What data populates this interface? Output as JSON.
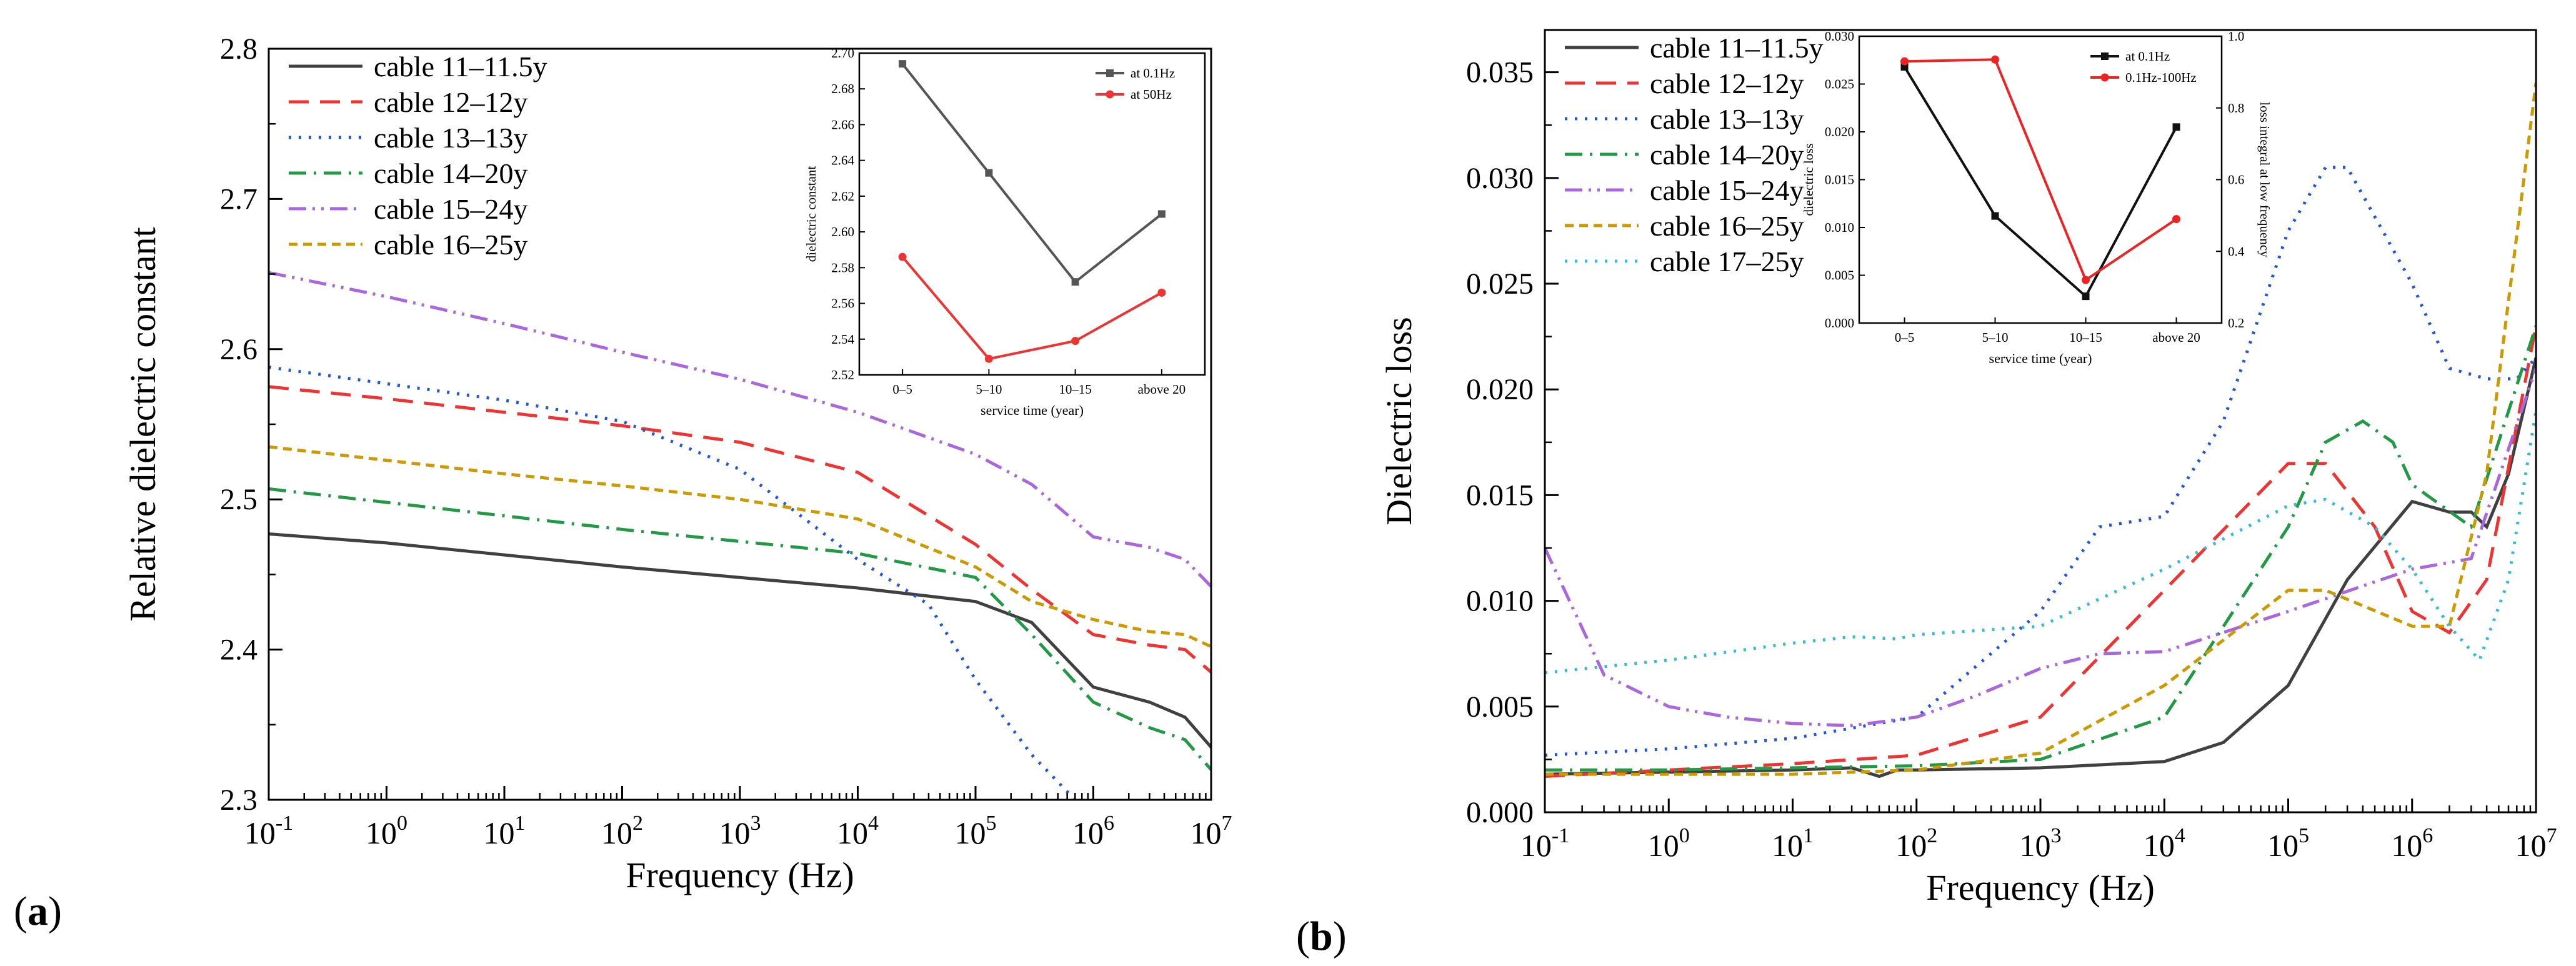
{
  "panels": {
    "a": {
      "label": "(a)",
      "label_letter": "a"
    },
    "b": {
      "label": "(b)",
      "label_letter": "b"
    }
  },
  "chart_data": [
    {
      "id": "a-main",
      "type": "line",
      "title": "",
      "xlabel": "Frequency (Hz)",
      "ylabel": "Relative dielectric constant",
      "xscale": "log",
      "xlim": [
        0.1,
        10000000
      ],
      "ylim": [
        2.3,
        2.8
      ],
      "xticks": [
        0.1,
        1,
        10,
        100,
        1000,
        10000,
        100000,
        1000000,
        10000000
      ],
      "xtick_base": "10",
      "xtick_exps": [
        "-1",
        "0",
        "1",
        "2",
        "3",
        "4",
        "5",
        "6",
        "7"
      ],
      "yticks": [
        "2.3",
        "2.4",
        "2.5",
        "2.6",
        "2.7",
        "2.8"
      ],
      "legend_position": "top-left",
      "series": [
        {
          "name": "cable 11–11.5y",
          "color": "#404040",
          "style": "solid",
          "x": [
            0.1,
            1,
            10,
            100,
            1000,
            10000,
            100000,
            300000,
            1000000,
            3000000,
            6000000,
            10000000
          ],
          "y": [
            2.477,
            2.471,
            2.463,
            2.455,
            2.448,
            2.441,
            2.432,
            2.418,
            2.375,
            2.365,
            2.355,
            2.335
          ]
        },
        {
          "name": "cable 12–12y",
          "color": "#ee3333",
          "style": "dashed",
          "x": [
            0.1,
            1,
            10,
            100,
            1000,
            10000,
            100000,
            300000,
            1000000,
            3000000,
            6000000,
            10000000
          ],
          "y": [
            2.575,
            2.567,
            2.558,
            2.549,
            2.538,
            2.518,
            2.47,
            2.44,
            2.41,
            2.403,
            2.4,
            2.385
          ]
        },
        {
          "name": "cable 13–13y",
          "color": "#2255dd",
          "style": "dotted",
          "x": [
            0.1,
            1,
            10,
            100,
            1000,
            10000,
            40000,
            100000,
            300000,
            700000
          ],
          "y": [
            2.588,
            2.577,
            2.566,
            2.552,
            2.52,
            2.46,
            2.43,
            2.38,
            2.33,
            2.3
          ]
        },
        {
          "name": "cable 14–20y",
          "color": "#229944",
          "style": "dashdot",
          "x": [
            0.1,
            1,
            10,
            100,
            1000,
            10000,
            100000,
            300000,
            1000000,
            3000000,
            6000000,
            10000000
          ],
          "y": [
            2.507,
            2.498,
            2.489,
            2.48,
            2.472,
            2.464,
            2.448,
            2.41,
            2.365,
            2.348,
            2.34,
            2.32
          ]
        },
        {
          "name": "cable 15–24y",
          "color": "#aa66dd",
          "style": "dashdotdot",
          "x": [
            0.1,
            1,
            10,
            100,
            1000,
            10000,
            100000,
            300000,
            1000000,
            3000000,
            6000000,
            10000000
          ],
          "y": [
            2.651,
            2.635,
            2.617,
            2.598,
            2.58,
            2.558,
            2.53,
            2.51,
            2.475,
            2.468,
            2.46,
            2.442
          ]
        },
        {
          "name": "cable 16–25y",
          "color": "#cc9900",
          "style": "shortdash",
          "x": [
            0.1,
            1,
            10,
            100,
            1000,
            10000,
            100000,
            300000,
            1000000,
            3000000,
            6000000,
            10000000
          ],
          "y": [
            2.535,
            2.526,
            2.517,
            2.509,
            2.5,
            2.487,
            2.455,
            2.432,
            2.42,
            2.412,
            2.41,
            2.402
          ]
        }
      ]
    },
    {
      "id": "a-inset",
      "type": "line",
      "title": "",
      "xlabel": "service time (year)",
      "ylabel": "dielectric constant",
      "categories": [
        "0–5",
        "5–10",
        "10–15",
        "above 20"
      ],
      "ylim": [
        2.52,
        2.7
      ],
      "yticks": [
        "2.52",
        "2.54",
        "2.56",
        "2.58",
        "2.60",
        "2.62",
        "2.64",
        "2.66",
        "2.68",
        "2.70"
      ],
      "legend_position": "top-right",
      "series": [
        {
          "name": "at 0.1Hz",
          "color": "#555555",
          "marker": "square",
          "values": [
            2.694,
            2.633,
            2.572,
            2.61
          ]
        },
        {
          "name": "at 50Hz",
          "color": "#ee3333",
          "marker": "circle",
          "values": [
            2.586,
            2.529,
            2.539,
            2.566
          ]
        }
      ]
    },
    {
      "id": "b-main",
      "type": "line",
      "title": "",
      "xlabel": "Frequency (Hz)",
      "ylabel": "Dielectric loss",
      "xscale": "log",
      "xlim": [
        0.1,
        10000000
      ],
      "ylim": [
        0,
        0.037
      ],
      "xticks": [
        0.1,
        1,
        10,
        100,
        1000,
        10000,
        100000,
        1000000,
        10000000
      ],
      "xtick_base": "10",
      "xtick_exps": [
        "-1",
        "0",
        "1",
        "2",
        "3",
        "4",
        "5",
        "6",
        "7"
      ],
      "yticks": [
        "0.000",
        "0.005",
        "0.010",
        "0.015",
        "0.020",
        "0.025",
        "0.030",
        "0.035"
      ],
      "legend_position": "top-left",
      "series": [
        {
          "name": "cable 11–11.5y",
          "color": "#404040",
          "style": "solid",
          "x": [
            0.1,
            1,
            10,
            30,
            50,
            70,
            100,
            1000,
            10000,
            30000,
            100000,
            300000,
            1000000,
            2000000,
            3000000,
            4000000,
            6000000,
            10000000
          ],
          "y": [
            0.0018,
            0.0019,
            0.002,
            0.0021,
            0.0017,
            0.002,
            0.002,
            0.0021,
            0.0024,
            0.0033,
            0.006,
            0.011,
            0.0147,
            0.0142,
            0.0142,
            0.0135,
            0.016,
            0.0215
          ]
        },
        {
          "name": "cable 12–12y",
          "color": "#ee3333",
          "style": "dashed",
          "x": [
            0.1,
            1,
            10,
            100,
            1000,
            10000,
            100000,
            200000,
            500000,
            1000000,
            2000000,
            4000000,
            10000000
          ],
          "y": [
            0.0017,
            0.002,
            0.0023,
            0.0027,
            0.0045,
            0.0105,
            0.0165,
            0.0165,
            0.0135,
            0.0095,
            0.0085,
            0.011,
            0.023
          ]
        },
        {
          "name": "cable 13–13y",
          "color": "#2255dd",
          "style": "dotted",
          "x": [
            0.1,
            1,
            10,
            100,
            1000,
            3000,
            10000,
            30000,
            100000,
            200000,
            300000,
            1000000,
            2000000,
            4000000,
            7000000,
            10000000
          ],
          "y": [
            0.0027,
            0.003,
            0.0035,
            0.0045,
            0.0095,
            0.0135,
            0.014,
            0.0185,
            0.0275,
            0.0305,
            0.0305,
            0.025,
            0.021,
            0.0205,
            0.0205,
            0.0215
          ]
        },
        {
          "name": "cable 14–20y",
          "color": "#229944",
          "style": "dashdot",
          "x": [
            0.1,
            1,
            10,
            100,
            1000,
            10000,
            100000,
            200000,
            400000,
            700000,
            1000000,
            3000000,
            10000000
          ],
          "y": [
            0.002,
            0.002,
            0.0021,
            0.0022,
            0.0025,
            0.0045,
            0.0135,
            0.0175,
            0.0185,
            0.0175,
            0.0155,
            0.0135,
            0.023
          ]
        },
        {
          "name": "cable 15–24y",
          "color": "#aa66dd",
          "style": "dashdotdot",
          "x": [
            0.1,
            0.3,
            1,
            3,
            10,
            30,
            100,
            300,
            1000,
            3000,
            10000,
            100000,
            1000000,
            3000000,
            10000000
          ],
          "y": [
            0.0125,
            0.0065,
            0.005,
            0.0045,
            0.0042,
            0.0041,
            0.0045,
            0.0055,
            0.0068,
            0.0075,
            0.0076,
            0.0095,
            0.0115,
            0.012,
            0.021
          ]
        },
        {
          "name": "cable 16–25y",
          "color": "#cc9900",
          "style": "shortdash",
          "x": [
            0.1,
            1,
            10,
            100,
            1000,
            10000,
            100000,
            200000,
            1000000,
            2000000,
            4000000,
            10000000
          ],
          "y": [
            0.0018,
            0.0018,
            0.0018,
            0.002,
            0.0028,
            0.006,
            0.0105,
            0.0105,
            0.0088,
            0.0088,
            0.016,
            0.0345
          ]
        },
        {
          "name": "cable 17–25y",
          "color": "#33bbdd",
          "style": "dotted",
          "x": [
            0.1,
            1,
            10,
            30,
            70,
            100,
            1000,
            10000,
            100000,
            200000,
            500000,
            1000000,
            2000000,
            3500000,
            6000000,
            10000000
          ],
          "y": [
            0.0066,
            0.0072,
            0.008,
            0.0083,
            0.0082,
            0.0084,
            0.0088,
            0.0115,
            0.0145,
            0.0148,
            0.0135,
            0.0115,
            0.0088,
            0.0072,
            0.011,
            0.019
          ]
        }
      ]
    },
    {
      "id": "b-inset",
      "type": "line",
      "title": "",
      "xlabel": "service time (year)",
      "ylabel": "dielectric loss",
      "ylabel_right": "loss integral at low frequency",
      "categories": [
        "0–5",
        "5–10",
        "10–15",
        "above 20"
      ],
      "ylim": [
        0,
        0.03
      ],
      "ylim_right": [
        0.2,
        1.0
      ],
      "yticks": [
        "0.000",
        "0.005",
        "0.010",
        "0.015",
        "0.020",
        "0.025",
        "0.030"
      ],
      "yticks_right": [
        "0.2",
        "0.4",
        "0.6",
        "0.8",
        "1.0"
      ],
      "legend_position": "top-right",
      "series": [
        {
          "name": "at 0.1Hz",
          "color": "#111111",
          "marker": "square",
          "axis": "left",
          "values": [
            0.0268,
            0.0112,
            0.0028,
            0.0205
          ]
        },
        {
          "name": "0.1Hz-100Hz",
          "color": "#ee2222",
          "marker": "circle",
          "axis": "right",
          "values": [
            0.93,
            0.935,
            0.32,
            0.49
          ]
        }
      ]
    }
  ]
}
